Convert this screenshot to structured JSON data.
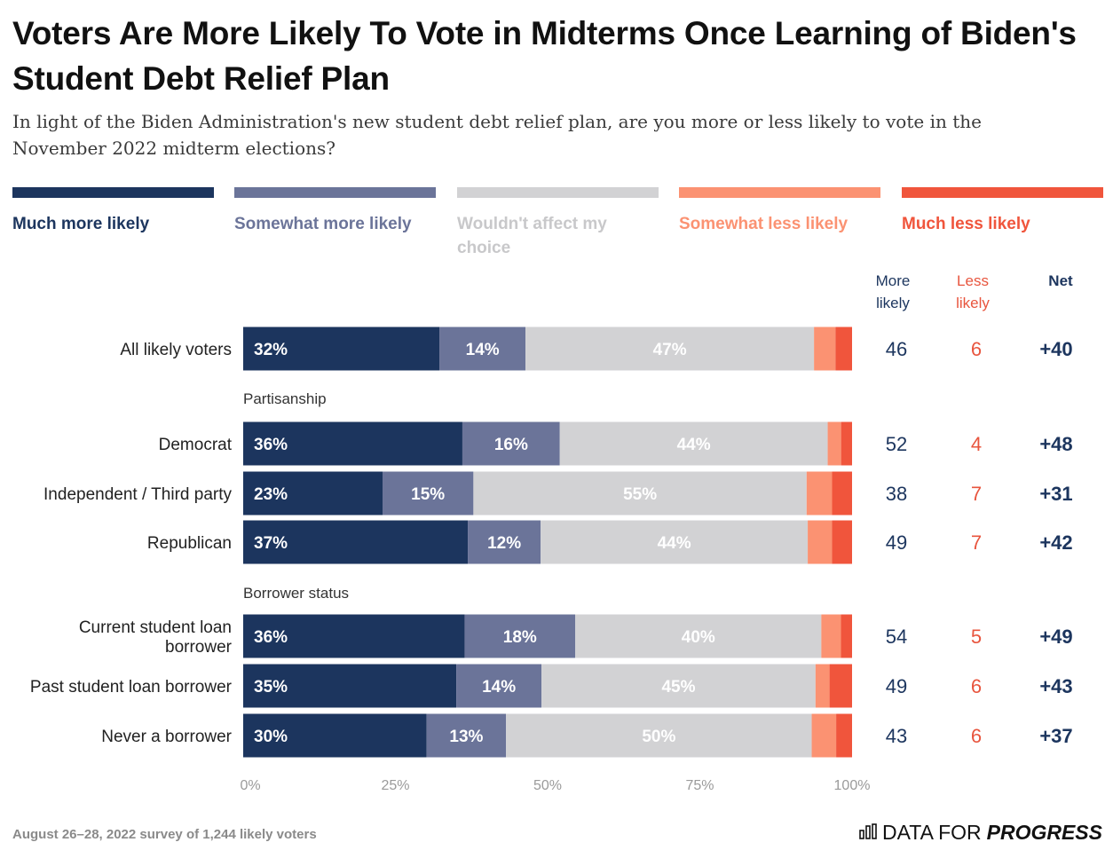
{
  "title": "Voters Are More Likely To Vote in Midterms Once Learning of Biden's Student Debt Relief Plan",
  "subtitle": "In light of the Biden Administration's new student debt relief plan, are you more or less likely to vote in the November 2022 midterm elections?",
  "footer_note": "August 26–28, 2022 survey of 1,244 likely voters",
  "brand": {
    "prefix": "DATA FOR",
    "bold": "PROGRESS",
    "icon": "bar-chart-icon"
  },
  "colors": {
    "much_more": "#1c355e",
    "somewhat_more": "#6b7499",
    "neutral": "#d2d2d4",
    "somewhat_less": "#fb9272",
    "much_less": "#f0553c",
    "more_text": "#1c355e",
    "less_text": "#e8553e",
    "axis_text": "#9a9a9a"
  },
  "chart_data": {
    "type": "bar",
    "orientation": "horizontal",
    "stacked": true,
    "xlim": [
      0,
      100
    ],
    "x_ticks": [
      "0%",
      "25%",
      "50%",
      "75%",
      "100%"
    ],
    "series": [
      {
        "name": "Much more likely",
        "color": "#1c355e"
      },
      {
        "name": "Somewhat more likely",
        "color": "#6b7499"
      },
      {
        "name": "Wouldn't affect my choice",
        "color": "#d2d2d4"
      },
      {
        "name": "Somewhat less likely",
        "color": "#fb9272"
      },
      {
        "name": "Much less likely",
        "color": "#f0553c"
      }
    ],
    "summary_headers": {
      "more": "More likely",
      "less": "Less likely",
      "net": "Net"
    },
    "groups": [
      {
        "label": "",
        "rows": [
          {
            "label": "All likely voters",
            "values": [
              32,
              14,
              47,
              3.5,
              2.7
            ],
            "more": "46",
            "less": "6",
            "net": "+40"
          }
        ]
      },
      {
        "label": "Partisanship",
        "rows": [
          {
            "label": "Democrat",
            "values": [
              36,
              16,
              44,
              2.2,
              1.8
            ],
            "more": "52",
            "less": "4",
            "net": "+48"
          },
          {
            "label": "Independent / Third party",
            "values": [
              23,
              15,
              55,
              4.2,
              3.3
            ],
            "more": "38",
            "less": "7",
            "net": "+31"
          },
          {
            "label": "Republican",
            "values": [
              37,
              12,
              44,
              4.0,
              3.3
            ],
            "more": "49",
            "less": "7",
            "net": "+42"
          }
        ]
      },
      {
        "label": "Borrower status",
        "rows": [
          {
            "label": "Current student loan borrower",
            "values": [
              36,
              18,
              40,
              3.2,
              1.8
            ],
            "more": "54",
            "less": "5",
            "net": "+49"
          },
          {
            "label": "Past student loan borrower",
            "values": [
              35,
              14,
              45,
              2.3,
              3.7
            ],
            "more": "49",
            "less": "6",
            "net": "+43"
          },
          {
            "label": "Never a borrower",
            "values": [
              30,
              13,
              50,
              4.0,
              2.6
            ],
            "more": "43",
            "less": "6",
            "net": "+37"
          }
        ]
      }
    ]
  }
}
